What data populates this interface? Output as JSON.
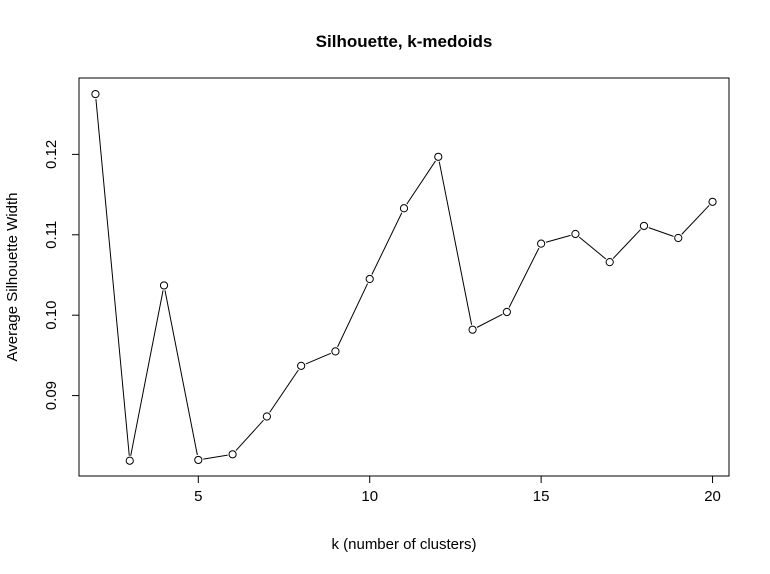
{
  "chart_data": {
    "type": "line",
    "title": "Silhouette, k-medoids",
    "xlabel": "k (number of clusters)",
    "ylabel": "Average Silhouette Width",
    "xlim": [
      1.52,
      20.48
    ],
    "ylim": [
      0.08,
      0.1295
    ],
    "xticks": [
      5,
      10,
      15,
      20
    ],
    "yticks": [
      0.09,
      0.1,
      0.11,
      0.12
    ],
    "xtick_labels": [
      "5",
      "10",
      "15",
      "20"
    ],
    "ytick_labels": [
      "0.09",
      "0.10",
      "0.11",
      "0.12"
    ],
    "grid": false,
    "markers": "open-circle",
    "series": [
      {
        "x": [
          2,
          3,
          4,
          5,
          6,
          7,
          8,
          9,
          10,
          11,
          12,
          13,
          14,
          15,
          16,
          17,
          18,
          19,
          20
        ],
        "values": [
          0.1275,
          0.0819,
          0.1037,
          0.082,
          0.0827,
          0.0874,
          0.0937,
          0.0955,
          0.1045,
          0.1133,
          0.1197,
          0.0982,
          0.1004,
          0.1089,
          0.1101,
          0.1066,
          0.1111,
          0.1096,
          0.1141
        ]
      }
    ]
  }
}
